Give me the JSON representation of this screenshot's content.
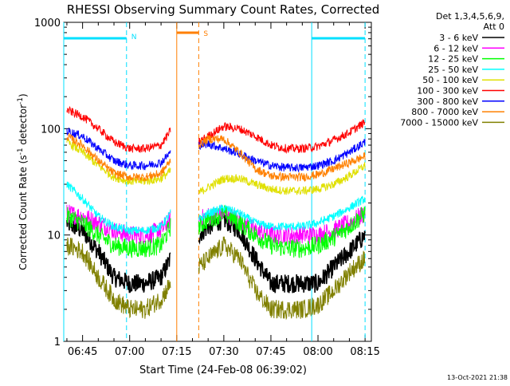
{
  "chart_data": {
    "type": "line",
    "title": "RHESSI Observing Summary Count Rates, Corrected",
    "xlabel": "Start Time (24-Feb-08 06:39:02)",
    "ylabel_main": "Corrected Count Rate (s",
    "ylabel_sup1": "-1",
    "ylabel_mid": " detector",
    "ylabel_sup2": "-1",
    "ylabel_end": ")",
    "y_scale": "log",
    "ylim": [
      1,
      1000
    ],
    "xlim": [
      "06:39",
      "08:17"
    ],
    "xticks": [
      "06:45",
      "07:00",
      "07:15",
      "07:30",
      "07:45",
      "08:00",
      "08:15"
    ],
    "yticks": [
      "1",
      "10",
      "100",
      "1000"
    ],
    "legend_title": [
      "Det 1,3,4,5,6,9,",
      "Att 0"
    ],
    "legend_placement": "right",
    "footer_date": "13-Oct-2021 21:38",
    "events": [
      {
        "label": "N",
        "start": "06:39",
        "end": "06:59",
        "color": "#00e0ff"
      },
      {
        "label": "S",
        "start": "07:15",
        "end": "07:22",
        "color": "#ff7f00"
      },
      {
        "label": "",
        "start": "07:58",
        "end": "08:15",
        "color": "#00e0ff"
      }
    ],
    "data_gap": [
      "07:13",
      "07:22"
    ],
    "series": [
      {
        "name": "3 - 6 keV",
        "color": "#000000",
        "x": [
          "06:40",
          "06:45",
          "06:50",
          "06:55",
          "07:00",
          "07:05",
          "07:10",
          "07:13",
          "07:22",
          "07:25",
          "07:30",
          "07:35",
          "07:40",
          "07:45",
          "07:50",
          "07:55",
          "08:00",
          "08:05",
          "08:10",
          "08:15"
        ],
        "y": [
          13,
          11,
          7,
          4,
          3.5,
          3.5,
          4,
          6,
          10,
          12,
          14,
          11,
          6,
          3.5,
          3.5,
          3.5,
          3.5,
          5,
          7,
          10
        ]
      },
      {
        "name": "6 - 12 keV",
        "color": "#ff00ff",
        "x": [
          "06:40",
          "06:45",
          "06:50",
          "06:55",
          "07:00",
          "07:05",
          "07:10",
          "07:13",
          "07:22",
          "07:25",
          "07:30",
          "07:35",
          "07:40",
          "07:45",
          "07:50",
          "07:55",
          "08:00",
          "08:05",
          "08:10",
          "08:15"
        ],
        "y": [
          16,
          15,
          13,
          11,
          10,
          10,
          11,
          14,
          14,
          15,
          16,
          14,
          11,
          10,
          10,
          10,
          10,
          11,
          13,
          16
        ]
      },
      {
        "name": "12 - 25 keV",
        "color": "#00ff00",
        "x": [
          "06:40",
          "06:45",
          "06:50",
          "06:55",
          "07:00",
          "07:05",
          "07:10",
          "07:13",
          "07:22",
          "07:25",
          "07:30",
          "07:35",
          "07:40",
          "07:45",
          "07:50",
          "07:55",
          "08:00",
          "08:05",
          "08:10",
          "08:15"
        ],
        "y": [
          15,
          13,
          10,
          8,
          7.5,
          7.5,
          8,
          12,
          12,
          14,
          16,
          13,
          10,
          8,
          7.5,
          7.5,
          8,
          9.5,
          12,
          16
        ]
      },
      {
        "name": "25 - 50 keV",
        "color": "#00ffff",
        "x": [
          "06:40",
          "06:45",
          "06:50",
          "06:55",
          "07:00",
          "07:05",
          "07:10",
          "07:13",
          "07:22",
          "07:25",
          "07:30",
          "07:35",
          "07:40",
          "07:45",
          "07:50",
          "07:55",
          "08:00",
          "08:05",
          "08:10",
          "08:15"
        ],
        "y": [
          30,
          22,
          15,
          12,
          11,
          11,
          12,
          16,
          14,
          16,
          18,
          16,
          13,
          12,
          12,
          12,
          13,
          15,
          18,
          22
        ]
      },
      {
        "name": "50 - 100 keV",
        "color": "#e0e000",
        "x": [
          "06:40",
          "06:45",
          "06:50",
          "06:55",
          "07:00",
          "07:05",
          "07:10",
          "07:13",
          "07:22",
          "07:25",
          "07:30",
          "07:35",
          "07:40",
          "07:45",
          "07:50",
          "07:55",
          "08:00",
          "08:05",
          "08:10",
          "08:15"
        ],
        "y": [
          75,
          60,
          45,
          35,
          32,
          32,
          34,
          40,
          25,
          28,
          34,
          34,
          30,
          27,
          26,
          26,
          27,
          30,
          36,
          45
        ]
      },
      {
        "name": "100 - 300 keV",
        "color": "#ff0000",
        "x": [
          "06:40",
          "06:45",
          "06:50",
          "06:55",
          "07:00",
          "07:05",
          "07:10",
          "07:13",
          "07:22",
          "07:25",
          "07:30",
          "07:35",
          "07:40",
          "07:45",
          "07:50",
          "07:55",
          "08:00",
          "08:05",
          "08:10",
          "08:15"
        ],
        "y": [
          150,
          130,
          100,
          75,
          65,
          65,
          70,
          95,
          75,
          85,
          105,
          100,
          85,
          70,
          65,
          65,
          68,
          78,
          92,
          115
        ]
      },
      {
        "name": "300 - 800 keV",
        "color": "#0000ff",
        "x": [
          "06:40",
          "06:45",
          "06:50",
          "06:55",
          "07:00",
          "07:05",
          "07:10",
          "07:13",
          "07:22",
          "07:25",
          "07:30",
          "07:35",
          "07:40",
          "07:45",
          "07:50",
          "07:55",
          "08:00",
          "08:05",
          "08:10",
          "08:15"
        ],
        "y": [
          95,
          85,
          65,
          50,
          45,
          45,
          48,
          60,
          70,
          72,
          65,
          58,
          50,
          45,
          43,
          43,
          45,
          50,
          60,
          75
        ]
      },
      {
        "name": "800 - 7000 keV",
        "color": "#ff8000",
        "x": [
          "06:40",
          "06:45",
          "06:50",
          "06:55",
          "07:00",
          "07:05",
          "07:10",
          "07:13",
          "07:22",
          "07:25",
          "07:30",
          "07:35",
          "07:40",
          "07:45",
          "07:50",
          "07:55",
          "08:00",
          "08:05",
          "08:10",
          "08:15"
        ],
        "y": [
          85,
          70,
          50,
          38,
          35,
          35,
          38,
          50,
          70,
          80,
          80,
          60,
          42,
          36,
          35,
          35,
          37,
          42,
          48,
          55
        ]
      },
      {
        "name": "7000 - 15000 keV",
        "color": "#808000",
        "x": [
          "06:40",
          "06:45",
          "06:50",
          "06:55",
          "07:00",
          "07:05",
          "07:10",
          "07:13",
          "07:22",
          "07:25",
          "07:30",
          "07:35",
          "07:40",
          "07:45",
          "07:50",
          "07:55",
          "08:00",
          "08:05",
          "08:10",
          "08:15"
        ],
        "y": [
          8,
          7,
          4,
          2.5,
          2,
          2,
          2.5,
          3.5,
          5,
          6,
          8,
          6,
          3,
          2,
          2,
          2,
          2.2,
          3,
          4.5,
          6
        ]
      }
    ]
  }
}
